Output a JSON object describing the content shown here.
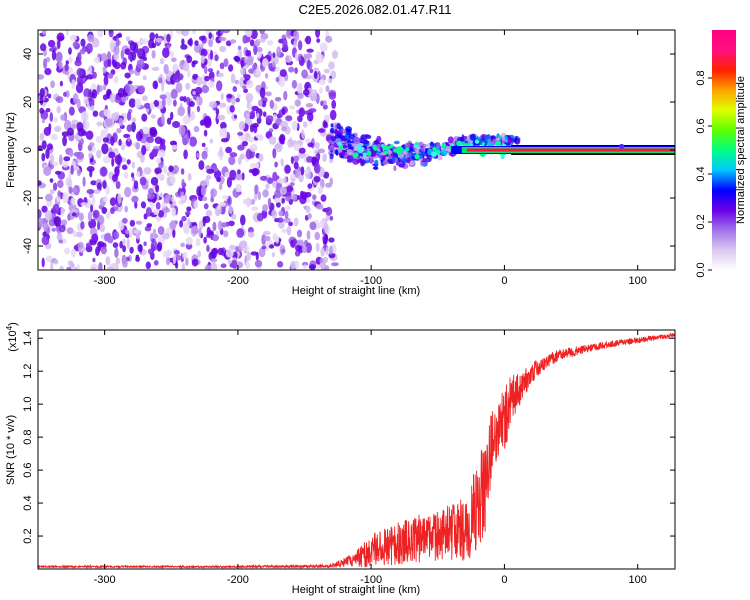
{
  "title": "C2E5.2026.082.01.47.R11",
  "chart_data": [
    {
      "type": "heatmap",
      "name": "spectrogram",
      "xlabel": "Height of straight line (km)",
      "ylabel": "Frequency (Hz)",
      "xlim": [
        -350,
        128
      ],
      "ylim": [
        -50,
        50
      ],
      "xticks": [
        -300,
        -200,
        -100,
        0,
        100
      ],
      "yticks": [
        -40,
        -20,
        0,
        20,
        40
      ],
      "xtick_labels": [
        "-300",
        "-200",
        "-100",
        "0",
        "100"
      ],
      "ytick_labels": [
        "-40",
        "-20",
        "0",
        "20",
        "40"
      ],
      "noise_region_x": [
        -350,
        -127
      ],
      "scatter_region_x": [
        -130,
        10
      ],
      "tone_region_x": [
        -40,
        128
      ],
      "tone_frequency": 0,
      "colorbar": {
        "label": "Normalized spectral amplitude",
        "range": [
          0,
          1
        ],
        "ticks": [
          0.0,
          0.2,
          0.4,
          0.6,
          0.8
        ],
        "tick_labels": [
          "0.0",
          "0.2",
          "0.4",
          "0.6",
          "0.8"
        ],
        "colors": [
          "#ffffff",
          "#dcc8f0",
          "#a070e8",
          "#6a00e8",
          "#0000ff",
          "#00c8ff",
          "#00ff80",
          "#60ff00",
          "#e0ff00",
          "#ffa000",
          "#ff2000",
          "#ff1080",
          "#ff0080"
        ]
      }
    },
    {
      "type": "line",
      "name": "snr",
      "xlabel": "Height of straight line (km)",
      "ylabel": "SNR (10 * v/v)",
      "multiplier_label": "(x10",
      "multiplier_exponent": "4",
      "multiplier_close": ")",
      "xlim": [
        -350,
        128
      ],
      "ylim": [
        0,
        14500
      ],
      "xticks": [
        -300,
        -200,
        -100,
        0,
        100
      ],
      "yticks": [
        2000,
        4000,
        6000,
        8000,
        10000,
        12000,
        14000
      ],
      "xtick_labels": [
        "-300",
        "-200",
        "-100",
        "0",
        "100"
      ],
      "ytick_labels": [
        "0.2",
        "0.4",
        "0.6",
        "0.8",
        "1.0",
        "1.2",
        "1.4"
      ],
      "color": "#ee2222",
      "envelope_x": [
        -350,
        -200,
        -130,
        -115,
        -100,
        -80,
        -60,
        -40,
        -30,
        -25,
        -20,
        -15,
        -10,
        -5,
        0,
        5,
        10,
        15,
        20,
        30,
        40,
        60,
        80,
        100,
        115,
        128
      ],
      "envelope_y": [
        150,
        150,
        200,
        600,
        1300,
        1800,
        2200,
        2600,
        2800,
        3500,
        4000,
        5500,
        8000,
        9000,
        9500,
        10500,
        11000,
        11500,
        12000,
        12600,
        13000,
        13400,
        13700,
        13900,
        14100,
        14200
      ],
      "noise_amplitude": [
        50,
        50,
        100,
        400,
        1000,
        1300,
        1500,
        1700,
        2000,
        2600,
        3000,
        3000,
        2500,
        2200,
        2000,
        1600,
        1200,
        900,
        600,
        450,
        350,
        250,
        200,
        180,
        150,
        150
      ]
    }
  ]
}
